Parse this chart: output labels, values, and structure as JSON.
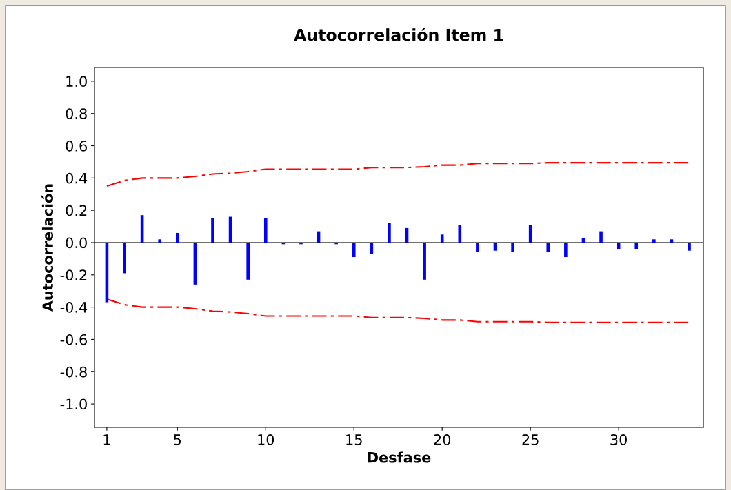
{
  "chart_data": {
    "type": "bar",
    "title": "Autocorrelación Item 1",
    "xlabel": "Desfase",
    "ylabel": "Autocorrelación",
    "x": [
      1,
      2,
      3,
      4,
      5,
      6,
      7,
      8,
      9,
      10,
      11,
      12,
      13,
      14,
      15,
      16,
      17,
      18,
      19,
      20,
      21,
      22,
      23,
      24,
      25,
      26,
      27,
      28,
      29,
      30,
      31,
      32,
      33,
      34
    ],
    "series": [
      {
        "color": "#0000ff",
        "values": [
          -0.37,
          -0.19,
          0.17,
          0.02,
          0.06,
          -0.26,
          0.15,
          0.16,
          -0.23,
          0.15,
          -0.01,
          -0.01,
          0.07,
          -0.01,
          -0.09,
          -0.07,
          0.12,
          0.09,
          -0.23,
          0.05,
          0.11,
          -0.06,
          -0.05,
          -0.06,
          0.11,
          -0.06,
          -0.09,
          0.03,
          0.07,
          -0.04,
          -0.04,
          0.02,
          0.02,
          -0.05
        ]
      },
      {
        "type": "line",
        "color": "#ff0000",
        "line_style": "dashed",
        "values": [
          0.35,
          0.385,
          0.4,
          0.4,
          0.4,
          0.41,
          0.425,
          0.43,
          0.44,
          0.455,
          0.455,
          0.455,
          0.455,
          0.455,
          0.455,
          0.465,
          0.465,
          0.465,
          0.47,
          0.48,
          0.48,
          0.49,
          0.49,
          0.49,
          0.49,
          0.495,
          0.495,
          0.495,
          0.495,
          0.495,
          0.495,
          0.495,
          0.495,
          0.495
        ]
      },
      {
        "type": "line",
        "color": "#ff0000",
        "line_style": "dashed",
        "values": [
          -0.35,
          -0.385,
          -0.4,
          -0.4,
          -0.4,
          -0.41,
          -0.425,
          -0.43,
          -0.44,
          -0.455,
          -0.455,
          -0.455,
          -0.455,
          -0.455,
          -0.455,
          -0.465,
          -0.465,
          -0.465,
          -0.47,
          -0.48,
          -0.48,
          -0.49,
          -0.49,
          -0.49,
          -0.49,
          -0.495,
          -0.495,
          -0.495,
          -0.495,
          -0.495,
          -0.495,
          -0.495,
          -0.495,
          -0.495
        ]
      }
    ],
    "xlim": [
      0.3,
      34.8
    ],
    "xticks": [
      1,
      5,
      10,
      15,
      20,
      25,
      30
    ],
    "ylim": [
      -1.145,
      1.085
    ],
    "yticks": [
      {
        "value": -1.0,
        "label": "-1.0"
      },
      {
        "value": -0.8,
        "label": "-0.8"
      },
      {
        "value": -0.6,
        "label": "-0.6"
      },
      {
        "value": -0.4,
        "label": "-0.4"
      },
      {
        "value": -0.2,
        "label": "-0.2"
      },
      {
        "value": 0.0,
        "label": "0.0"
      },
      {
        "value": 0.2,
        "label": "0.2"
      },
      {
        "value": 0.4,
        "label": "0.4"
      },
      {
        "value": 0.6,
        "label": "0.6"
      },
      {
        "value": 0.8,
        "label": "0.8"
      },
      {
        "value": 1.0,
        "label": "1.0"
      }
    ],
    "ref_lines": [
      {
        "axis": "y",
        "value": 0,
        "color": "#404040",
        "line_style": "solid"
      }
    ],
    "grid": false,
    "legend": false
  }
}
